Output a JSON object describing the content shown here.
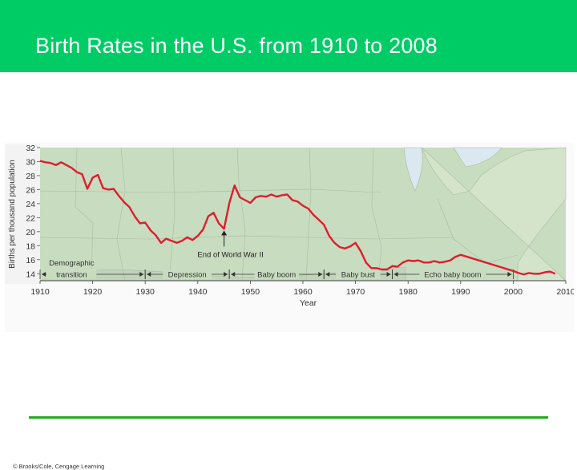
{
  "slide": {
    "title": "Birth Rates in the U.S. from 1910 to 2008",
    "credit": "© Brooks/Cole, Cengage Learning"
  },
  "colors": {
    "header": "#00cc66",
    "map_fill": "#c8dcc0",
    "line": "#dd1e2f",
    "rule": "#22aa22"
  },
  "chart_data": {
    "type": "line",
    "title": "",
    "xlabel": "Year",
    "ylabel": "Births per thousand population",
    "xlim": [
      1910,
      2010
    ],
    "ylim": [
      13,
      32
    ],
    "x_ticks": [
      "1910",
      "1920",
      "1930",
      "1940",
      "1950",
      "1960",
      "1970",
      "1980",
      "1990",
      "2000",
      "2010"
    ],
    "y_ticks": [
      "32",
      "30",
      "28",
      "26",
      "24",
      "22",
      "20",
      "18",
      "16",
      "14"
    ],
    "series": [
      {
        "x": [
          1910,
          1911,
          1912,
          1913,
          1914,
          1915,
          1916,
          1917,
          1918,
          1919,
          1920,
          1921,
          1922,
          1923,
          1924,
          1925,
          1926,
          1927,
          1928,
          1929,
          1930,
          1931,
          1932,
          1933,
          1934,
          1935,
          1936,
          1937,
          1938,
          1939,
          1940,
          1941,
          1942,
          1943,
          1944,
          1945,
          1946,
          1947,
          1948,
          1949,
          1950,
          1951,
          1952,
          1953,
          1954,
          1955,
          1956,
          1957,
          1958,
          1959,
          1960,
          1961,
          1962,
          1963,
          1964,
          1965,
          1966,
          1967,
          1968,
          1969,
          1970,
          1971,
          1972,
          1973,
          1974,
          1975,
          1976,
          1977,
          1978,
          1979,
          1980,
          1981,
          1982,
          1983,
          1984,
          1985,
          1986,
          1987,
          1988,
          1989,
          1990,
          2000,
          2001,
          2002,
          2003,
          2004,
          2005,
          2006,
          2007,
          2008
        ],
        "y": [
          30.1,
          29.9,
          29.8,
          29.5,
          29.9,
          29.5,
          29.1,
          28.5,
          28.2,
          26.1,
          27.7,
          28.1,
          26.2,
          26.0,
          26.1,
          25.1,
          24.2,
          23.5,
          22.2,
          21.2,
          21.3,
          20.2,
          19.5,
          18.4,
          19.0,
          18.7,
          18.4,
          18.7,
          19.2,
          18.8,
          19.4,
          20.3,
          22.2,
          22.7,
          21.2,
          20.4,
          24.1,
          26.6,
          24.9,
          24.5,
          24.1,
          24.9,
          25.1,
          25.0,
          25.3,
          25.0,
          25.2,
          25.3,
          24.5,
          24.3,
          23.7,
          23.3,
          22.4,
          21.7,
          21.0,
          19.4,
          18.4,
          17.8,
          17.6,
          17.9,
          18.4,
          17.2,
          15.6,
          14.8,
          14.8,
          14.6,
          14.6,
          15.1,
          15.0,
          15.6,
          15.9,
          15.8,
          15.9,
          15.6,
          15.6,
          15.8,
          15.6,
          15.7,
          15.9,
          16.4,
          16.7,
          14.4,
          14.1,
          13.9,
          14.1,
          14.0,
          14.0,
          14.2,
          14.3,
          14.0
        ]
      }
    ],
    "annotations": [
      {
        "text": "End of World War II",
        "x": 1945,
        "y": 20.4
      }
    ],
    "periods": [
      {
        "label": "Demographic",
        "label2": "transition",
        "start": 1910,
        "end": 1930
      },
      {
        "label": "Depression",
        "start": 1930,
        "end": 1946
      },
      {
        "label": "Baby boom",
        "start": 1946,
        "end": 1964
      },
      {
        "label": "Baby bust",
        "start": 1964,
        "end": 1977
      },
      {
        "label": "Echo baby boom",
        "start": 1977,
        "end": 2000
      }
    ]
  }
}
